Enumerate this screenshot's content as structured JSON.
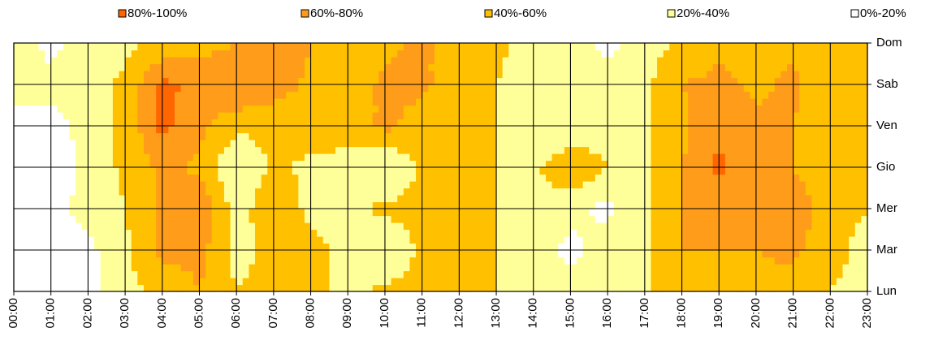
{
  "chart_data": {
    "type": "contour",
    "x": [
      "00:00",
      "01:00",
      "02:00",
      "03:00",
      "04:00",
      "05:00",
      "06:00",
      "07:00",
      "08:00",
      "09:00",
      "10:00",
      "11:00",
      "12:00",
      "13:00",
      "14:00",
      "15:00",
      "16:00",
      "17:00",
      "18:00",
      "19:00",
      "20:00",
      "21:00",
      "22:00",
      "23:00"
    ],
    "y": [
      "Lun",
      "Mar",
      "Mer",
      "Gio",
      "Ven",
      "Sab",
      "Dom"
    ],
    "z": [
      [
        10,
        10,
        10,
        35,
        45,
        60,
        40,
        45,
        45,
        35,
        45,
        45,
        45,
        40,
        30,
        30,
        30,
        35,
        55,
        55,
        55,
        50,
        40,
        35
      ],
      [
        10,
        10,
        15,
        35,
        65,
        65,
        35,
        45,
        45,
        35,
        20,
        45,
        45,
        40,
        30,
        15,
        30,
        35,
        60,
        60,
        60,
        65,
        45,
        35
      ],
      [
        15,
        15,
        25,
        40,
        65,
        82,
        30,
        55,
        35,
        35,
        45,
        45,
        45,
        40,
        30,
        25,
        15,
        35,
        60,
        70,
        70,
        75,
        45,
        40
      ],
      [
        10,
        10,
        25,
        45,
        65,
        55,
        18,
        45,
        35,
        35,
        18,
        45,
        45,
        40,
        35,
        60,
        40,
        35,
        60,
        85,
        65,
        60,
        45,
        40
      ],
      [
        15,
        15,
        25,
        45,
        85,
        65,
        45,
        45,
        50,
        45,
        65,
        50,
        45,
        40,
        20,
        20,
        30,
        35,
        55,
        75,
        65,
        60,
        45,
        45
      ],
      [
        25,
        25,
        30,
        45,
        85,
        75,
        82,
        70,
        55,
        45,
        65,
        65,
        45,
        40,
        30,
        30,
        30,
        35,
        60,
        65,
        55,
        65,
        45,
        45
      ],
      [
        30,
        15,
        30,
        35,
        45,
        50,
        60,
        75,
        60,
        45,
        55,
        65,
        45,
        45,
        30,
        30,
        15,
        30,
        45,
        55,
        50,
        55,
        45,
        40
      ]
    ],
    "series": [
      {
        "name": "80%-100%",
        "color": "#ff6600",
        "range": [
          80,
          100
        ]
      },
      {
        "name": "60%-80%",
        "color": "#ff9c1a",
        "range": [
          60,
          80
        ]
      },
      {
        "name": "40%-60%",
        "color": "#ffc000",
        "range": [
          40,
          60
        ]
      },
      {
        "name": "20%-40%",
        "color": "#ffff99",
        "range": [
          20,
          40
        ]
      },
      {
        "name": "0%-20%",
        "color": "#ffffff",
        "range": [
          0,
          20
        ]
      }
    ],
    "grid": true
  }
}
